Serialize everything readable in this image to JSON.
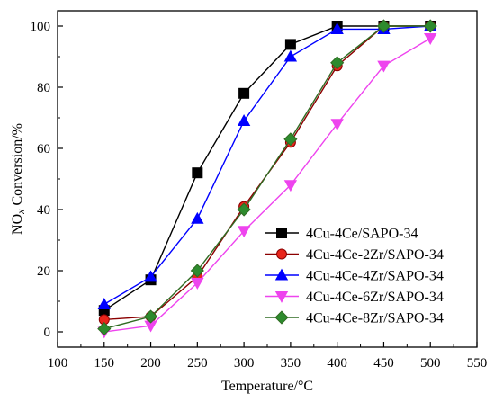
{
  "chart_data": {
    "type": "line",
    "xlabel": "Temperature/°C",
    "ylabel_parts": [
      "NO",
      "x",
      " Conversion/%"
    ],
    "xlim": [
      100,
      550
    ],
    "ylim": [
      -5,
      105
    ],
    "xticks": [
      100,
      150,
      200,
      250,
      300,
      350,
      400,
      450,
      500,
      550
    ],
    "yticks": [
      0,
      20,
      40,
      60,
      80,
      100
    ],
    "grid": false,
    "legend_position": "bottom-right",
    "x": [
      150,
      200,
      250,
      300,
      350,
      400,
      450,
      500
    ],
    "series": [
      {
        "name": "4Cu-4Ce/SAPO-34",
        "marker": "square",
        "color": "#000000",
        "fill": "#000000",
        "values": [
          7,
          17,
          52,
          78,
          94,
          100,
          100,
          100
        ]
      },
      {
        "name": "4Cu-4Ce-2Zr/SAPO-34",
        "marker": "circle",
        "color": "#8B0000",
        "fill": "#E8251B",
        "values": [
          4,
          5,
          18,
          41,
          62,
          87,
          100,
          100
        ]
      },
      {
        "name": "4Cu-4Ce-4Zr/SAPO-34",
        "marker": "triangle-up",
        "color": "#0000FF",
        "fill": "#0000FF",
        "values": [
          9,
          18,
          37,
          69,
          90,
          99,
          99,
          100
        ]
      },
      {
        "name": "4Cu-4Ce-6Zr/SAPO-34",
        "marker": "triangle-down",
        "color": "#EE44EE",
        "fill": "#EE44EE",
        "values": [
          0,
          2,
          16,
          33,
          48,
          68,
          87,
          96
        ]
      },
      {
        "name": "4Cu-4Ce-8Zr/SAPO-34",
        "marker": "diamond",
        "color": "#2F6B22",
        "fill": "#2E8B2E",
        "values": [
          1,
          5,
          20,
          40,
          63,
          88,
          100,
          100
        ]
      }
    ]
  }
}
